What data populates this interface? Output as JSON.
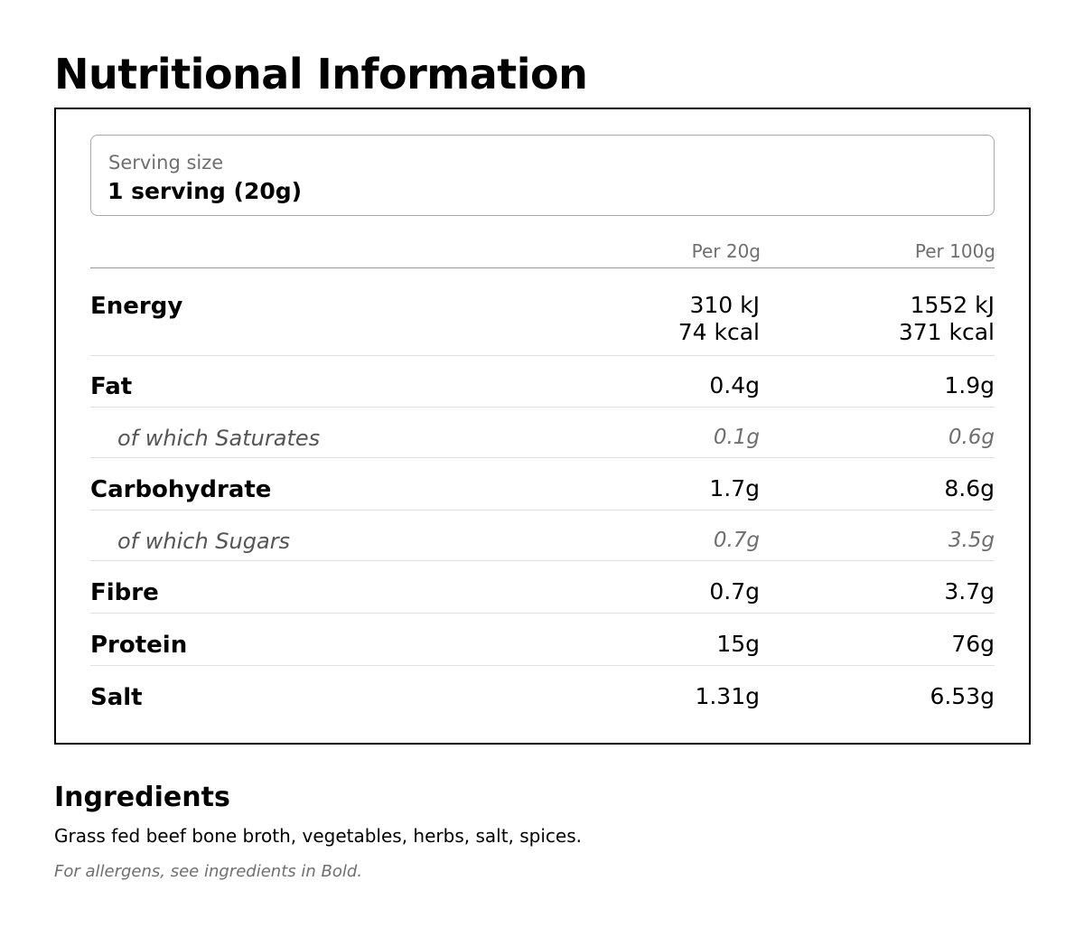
{
  "page": {
    "title": "Nutritional Information"
  },
  "serving": {
    "label": "Serving size",
    "value": "1 serving (20g)"
  },
  "table": {
    "columns": [
      "Per 20g",
      "Per 100g"
    ],
    "rows": [
      {
        "name": "Energy",
        "per_serving": [
          "310 kJ",
          "74 kcal"
        ],
        "per_100g": [
          "1552 kJ",
          "371 kcal"
        ],
        "sub": false
      },
      {
        "name": "Fat",
        "per_serving": "0.4g",
        "per_100g": "1.9g",
        "sub": false
      },
      {
        "name": "of which Saturates",
        "per_serving": "0.1g",
        "per_100g": "0.6g",
        "sub": true
      },
      {
        "name": "Carbohydrate",
        "per_serving": "1.7g",
        "per_100g": "8.6g",
        "sub": false
      },
      {
        "name": "of which Sugars",
        "per_serving": "0.7g",
        "per_100g": "3.5g",
        "sub": true
      },
      {
        "name": "Fibre",
        "per_serving": "0.7g",
        "per_100g": "3.7g",
        "sub": false
      },
      {
        "name": "Protein",
        "per_serving": "15g",
        "per_100g": "76g",
        "sub": false
      },
      {
        "name": "Salt",
        "per_serving": "1.31g",
        "per_100g": "6.53g",
        "sub": false
      }
    ]
  },
  "ingredients": {
    "title": "Ingredients",
    "text": "Grass fed beef bone broth, vegetables, herbs, salt, spices.",
    "allergen_note": "For allergens, see ingredients in Bold."
  }
}
